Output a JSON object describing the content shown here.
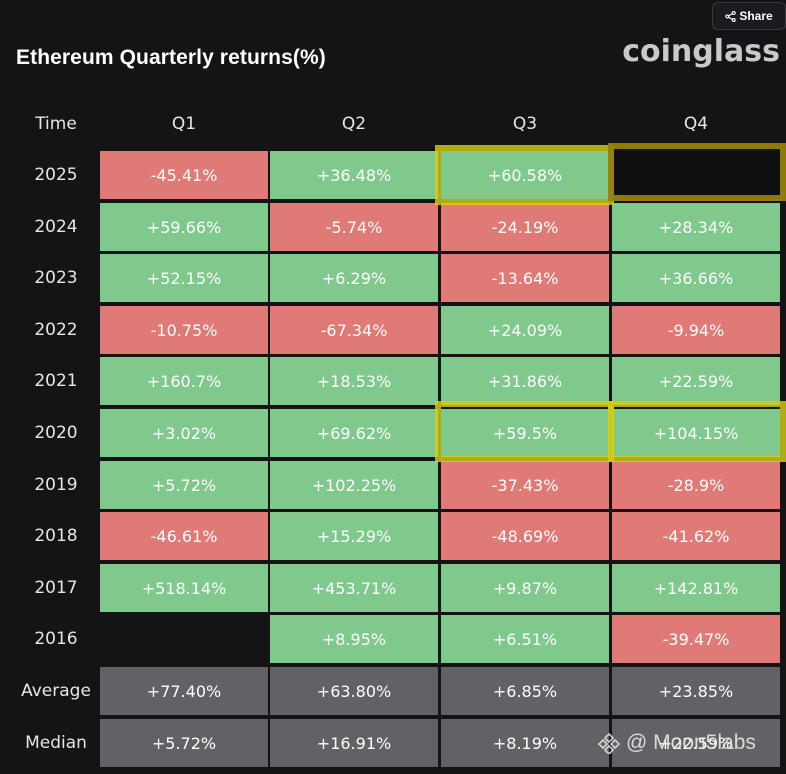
{
  "share": {
    "label": "Share",
    "icon": "share-icon"
  },
  "title": "Ethereum Quarterly returns(%)",
  "brand": "coinglass",
  "header": {
    "time": "Time",
    "quarters": [
      "Q1",
      "Q2",
      "Q3",
      "Q4"
    ]
  },
  "colors": {
    "positive": "#7fc98c",
    "negative": "#e07a76",
    "summary": "#616166",
    "highlight": "#d6ce14"
  },
  "rows": [
    {
      "year": "2025",
      "values": [
        "-45.41%",
        "+36.48%",
        "+60.58%",
        ""
      ]
    },
    {
      "year": "2024",
      "values": [
        "+59.66%",
        "-5.74%",
        "-24.19%",
        "+28.34%"
      ]
    },
    {
      "year": "2023",
      "values": [
        "+52.15%",
        "+6.29%",
        "-13.64%",
        "+36.66%"
      ]
    },
    {
      "year": "2022",
      "values": [
        "-10.75%",
        "-67.34%",
        "+24.09%",
        "-9.94%"
      ]
    },
    {
      "year": "2021",
      "values": [
        "+160.7%",
        "+18.53%",
        "+31.86%",
        "+22.59%"
      ]
    },
    {
      "year": "2020",
      "values": [
        "+3.02%",
        "+69.62%",
        "+59.5%",
        "+104.15%"
      ]
    },
    {
      "year": "2019",
      "values": [
        "+5.72%",
        "+102.25%",
        "-37.43%",
        "-28.9%"
      ]
    },
    {
      "year": "2018",
      "values": [
        "-46.61%",
        "+15.29%",
        "-48.69%",
        "-41.62%"
      ]
    },
    {
      "year": "2017",
      "values": [
        "+518.14%",
        "+453.71%",
        "+9.87%",
        "+142.81%"
      ]
    },
    {
      "year": "2016",
      "values": [
        "",
        "+8.95%",
        "+6.51%",
        "-39.47%"
      ]
    }
  ],
  "summary": [
    {
      "label": "Average",
      "values": [
        "+77.40%",
        "+63.80%",
        "+6.85%",
        "+23.85%"
      ]
    },
    {
      "label": "Median",
      "values": [
        "+5.72%",
        "+16.91%",
        "+8.19%",
        "+22.59%"
      ]
    }
  ],
  "watermark": "@ Moon5labs"
}
